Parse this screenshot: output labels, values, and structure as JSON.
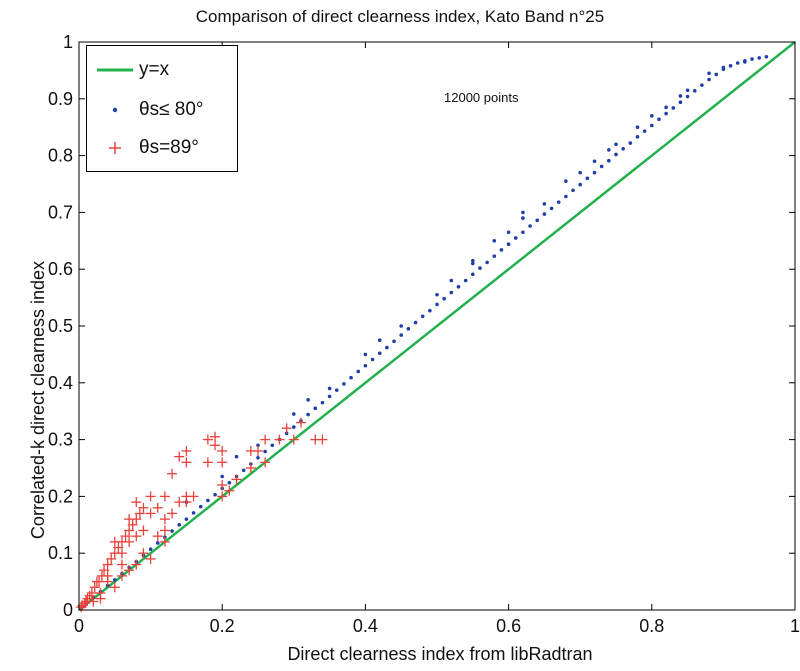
{
  "chart_data": {
    "type": "scatter",
    "title": "Comparison of direct clearness index, Kato Band n°25",
    "xlabel": "Direct clearness index from libRadtran",
    "ylabel": "Correlated-k direct clearness index",
    "xlim": [
      0,
      1
    ],
    "ylim": [
      0,
      1
    ],
    "xticks": [
      "0",
      "0.2",
      "0.4",
      "0.6",
      "0.8",
      "1"
    ],
    "yticks": [
      "0",
      "0.1",
      "0.2",
      "0.3",
      "0.4",
      "0.5",
      "0.6",
      "0.7",
      "0.8",
      "0.9",
      "1"
    ],
    "grid": false,
    "legend_position": "top-left",
    "annotation": "12000 points",
    "line": {
      "name": "y=x",
      "x": [
        0,
        1
      ],
      "y": [
        0,
        1
      ],
      "color": "#22b14c"
    },
    "series": [
      {
        "name": "θs≤ 80°",
        "marker": "dot",
        "color": "#1f3ea8",
        "points": [
          [
            0.005,
            0.006
          ],
          [
            0.01,
            0.011
          ],
          [
            0.02,
            0.022
          ],
          [
            0.03,
            0.032
          ],
          [
            0.04,
            0.043
          ],
          [
            0.05,
            0.053
          ],
          [
            0.06,
            0.064
          ],
          [
            0.07,
            0.075
          ],
          [
            0.08,
            0.085
          ],
          [
            0.09,
            0.096
          ],
          [
            0.1,
            0.107
          ],
          [
            0.11,
            0.118
          ],
          [
            0.12,
            0.128
          ],
          [
            0.13,
            0.139
          ],
          [
            0.14,
            0.15
          ],
          [
            0.15,
            0.16
          ],
          [
            0.16,
            0.171
          ],
          [
            0.17,
            0.182
          ],
          [
            0.18,
            0.193
          ],
          [
            0.19,
            0.203
          ],
          [
            0.2,
            0.214
          ],
          [
            0.21,
            0.224
          ],
          [
            0.22,
            0.235
          ],
          [
            0.23,
            0.246
          ],
          [
            0.24,
            0.257
          ],
          [
            0.25,
            0.268
          ],
          [
            0.26,
            0.279
          ],
          [
            0.27,
            0.29
          ],
          [
            0.28,
            0.3
          ],
          [
            0.29,
            0.311
          ],
          [
            0.3,
            0.322
          ],
          [
            0.31,
            0.333
          ],
          [
            0.32,
            0.344
          ],
          [
            0.33,
            0.355
          ],
          [
            0.34,
            0.365
          ],
          [
            0.35,
            0.376
          ],
          [
            0.36,
            0.387
          ],
          [
            0.37,
            0.398
          ],
          [
            0.38,
            0.409
          ],
          [
            0.39,
            0.42
          ],
          [
            0.4,
            0.43
          ],
          [
            0.41,
            0.441
          ],
          [
            0.42,
            0.452
          ],
          [
            0.43,
            0.462
          ],
          [
            0.44,
            0.473
          ],
          [
            0.45,
            0.484
          ],
          [
            0.46,
            0.495
          ],
          [
            0.47,
            0.506
          ],
          [
            0.48,
            0.517
          ],
          [
            0.49,
            0.527
          ],
          [
            0.5,
            0.538
          ],
          [
            0.51,
            0.548
          ],
          [
            0.52,
            0.559
          ],
          [
            0.53,
            0.569
          ],
          [
            0.54,
            0.58
          ],
          [
            0.55,
            0.591
          ],
          [
            0.56,
            0.602
          ],
          [
            0.57,
            0.612
          ],
          [
            0.58,
            0.623
          ],
          [
            0.59,
            0.634
          ],
          [
            0.6,
            0.644
          ],
          [
            0.61,
            0.655
          ],
          [
            0.62,
            0.665
          ],
          [
            0.63,
            0.676
          ],
          [
            0.64,
            0.686
          ],
          [
            0.65,
            0.697
          ],
          [
            0.66,
            0.707
          ],
          [
            0.67,
            0.718
          ],
          [
            0.68,
            0.728
          ],
          [
            0.69,
            0.739
          ],
          [
            0.7,
            0.749
          ],
          [
            0.71,
            0.76
          ],
          [
            0.72,
            0.77
          ],
          [
            0.73,
            0.781
          ],
          [
            0.74,
            0.791
          ],
          [
            0.75,
            0.802
          ],
          [
            0.76,
            0.812
          ],
          [
            0.77,
            0.822
          ],
          [
            0.78,
            0.833
          ],
          [
            0.79,
            0.843
          ],
          [
            0.8,
            0.853
          ],
          [
            0.81,
            0.864
          ],
          [
            0.82,
            0.874
          ],
          [
            0.83,
            0.884
          ],
          [
            0.84,
            0.894
          ],
          [
            0.85,
            0.904
          ],
          [
            0.86,
            0.914
          ],
          [
            0.87,
            0.924
          ],
          [
            0.88,
            0.934
          ],
          [
            0.89,
            0.943
          ],
          [
            0.9,
            0.952
          ],
          [
            0.91,
            0.958
          ],
          [
            0.92,
            0.963
          ],
          [
            0.93,
            0.967
          ],
          [
            0.94,
            0.97
          ],
          [
            0.95,
            0.972
          ],
          [
            0.96,
            0.974
          ],
          [
            0.15,
            0.19
          ],
          [
            0.2,
            0.235
          ],
          [
            0.25,
            0.29
          ],
          [
            0.3,
            0.345
          ],
          [
            0.35,
            0.39
          ],
          [
            0.4,
            0.45
          ],
          [
            0.45,
            0.5
          ],
          [
            0.5,
            0.555
          ],
          [
            0.55,
            0.61
          ],
          [
            0.6,
            0.665
          ],
          [
            0.65,
            0.715
          ],
          [
            0.7,
            0.77
          ],
          [
            0.75,
            0.82
          ],
          [
            0.8,
            0.87
          ],
          [
            0.85,
            0.915
          ],
          [
            0.88,
            0.945
          ],
          [
            0.22,
            0.27
          ],
          [
            0.32,
            0.37
          ],
          [
            0.42,
            0.475
          ],
          [
            0.52,
            0.58
          ],
          [
            0.62,
            0.69
          ],
          [
            0.72,
            0.79
          ],
          [
            0.82,
            0.885
          ],
          [
            0.9,
            0.955
          ],
          [
            0.55,
            0.615
          ],
          [
            0.58,
            0.65
          ],
          [
            0.62,
            0.7
          ],
          [
            0.68,
            0.755
          ],
          [
            0.74,
            0.81
          ],
          [
            0.78,
            0.85
          ],
          [
            0.84,
            0.905
          ],
          [
            0.93,
            0.965
          ]
        ]
      },
      {
        "name": "θs=89°",
        "marker": "plus",
        "color": "#e8413a",
        "points": [
          [
            0.003,
            0.005
          ],
          [
            0.008,
            0.012
          ],
          [
            0.012,
            0.02
          ],
          [
            0.018,
            0.03
          ],
          [
            0.022,
            0.04
          ],
          [
            0.028,
            0.05
          ],
          [
            0.032,
            0.06
          ],
          [
            0.035,
            0.07
          ],
          [
            0.04,
            0.08
          ],
          [
            0.045,
            0.09
          ],
          [
            0.05,
            0.1
          ],
          [
            0.055,
            0.11
          ],
          [
            0.06,
            0.12
          ],
          [
            0.065,
            0.13
          ],
          [
            0.07,
            0.14
          ],
          [
            0.075,
            0.15
          ],
          [
            0.08,
            0.16
          ],
          [
            0.085,
            0.17
          ],
          [
            0.09,
            0.18
          ],
          [
            0.1,
            0.2
          ],
          [
            0.12,
            0.2
          ],
          [
            0.18,
            0.3
          ],
          [
            0.19,
            0.305
          ],
          [
            0.19,
            0.29
          ],
          [
            0.2,
            0.28
          ],
          [
            0.18,
            0.26
          ],
          [
            0.2,
            0.22
          ],
          [
            0.15,
            0.19
          ],
          [
            0.16,
            0.2
          ],
          [
            0.12,
            0.14
          ],
          [
            0.1,
            0.09
          ],
          [
            0.08,
            0.08
          ],
          [
            0.05,
            0.04
          ],
          [
            0.03,
            0.03
          ],
          [
            0.025,
            0.05
          ],
          [
            0.06,
            0.1
          ],
          [
            0.07,
            0.12
          ],
          [
            0.11,
            0.13
          ],
          [
            0.14,
            0.19
          ],
          [
            0.14,
            0.27
          ],
          [
            0.15,
            0.26
          ],
          [
            0.15,
            0.28
          ],
          [
            0.13,
            0.24
          ],
          [
            0.11,
            0.18
          ],
          [
            0.12,
            0.16
          ],
          [
            0.1,
            0.17
          ],
          [
            0.09,
            0.14
          ],
          [
            0.08,
            0.13
          ],
          [
            0.06,
            0.08
          ],
          [
            0.04,
            0.06
          ],
          [
            0.05,
            0.12
          ],
          [
            0.07,
            0.16
          ],
          [
            0.08,
            0.19
          ],
          [
            0.2,
            0.2
          ],
          [
            0.24,
            0.25
          ],
          [
            0.26,
            0.26
          ],
          [
            0.24,
            0.28
          ],
          [
            0.26,
            0.3
          ],
          [
            0.28,
            0.3
          ],
          [
            0.3,
            0.3
          ],
          [
            0.29,
            0.32
          ],
          [
            0.31,
            0.33
          ],
          [
            0.34,
            0.3
          ],
          [
            0.33,
            0.3
          ],
          [
            0.21,
            0.21
          ],
          [
            0.22,
            0.23
          ],
          [
            0.25,
            0.28
          ],
          [
            0.2,
            0.26
          ],
          [
            0.03,
            0.02
          ],
          [
            0.02,
            0.015
          ],
          [
            0.01,
            0.015
          ],
          [
            0.005,
            0.008
          ],
          [
            0.015,
            0.025
          ],
          [
            0.04,
            0.05
          ],
          [
            0.06,
            0.06
          ],
          [
            0.07,
            0.07
          ],
          [
            0.09,
            0.1
          ],
          [
            0.12,
            0.12
          ],
          [
            0.13,
            0.17
          ],
          [
            0.15,
            0.2
          ]
        ]
      }
    ]
  }
}
